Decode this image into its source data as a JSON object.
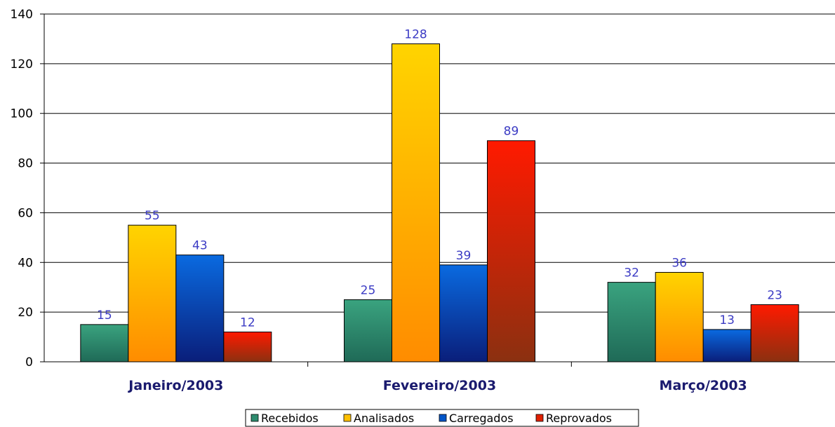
{
  "chart_data": {
    "type": "bar",
    "categories": [
      "Janeiro/2003",
      "Fevereiro/2003",
      "Março/2003"
    ],
    "series": [
      {
        "name": "Recebidos",
        "values": [
          15,
          25,
          32
        ],
        "color": "#2e8b6e",
        "gradient": [
          "#3aa37f",
          "#1f6a57"
        ]
      },
      {
        "name": "Analisados",
        "values": [
          55,
          128,
          36
        ],
        "color": "#ffc000",
        "gradient": [
          "#ffd400",
          "#ff8c00"
        ]
      },
      {
        "name": "Carregados",
        "values": [
          43,
          39,
          13
        ],
        "color": "#0055c8",
        "gradient": [
          "#0a6ae0",
          "#0a1e7a"
        ]
      },
      {
        "name": "Reprovados",
        "values": [
          12,
          89,
          23
        ],
        "color": "#e02000",
        "gradient": [
          "#ff1a00",
          "#8b3010"
        ]
      }
    ],
    "yticks": [
      0,
      20,
      40,
      60,
      80,
      100,
      120,
      140
    ],
    "ylim": [
      0,
      140
    ],
    "grid": true,
    "legend_position": "bottom",
    "data_label_color": "#3b3bc4",
    "category_label_color": "#1a1a6e"
  }
}
